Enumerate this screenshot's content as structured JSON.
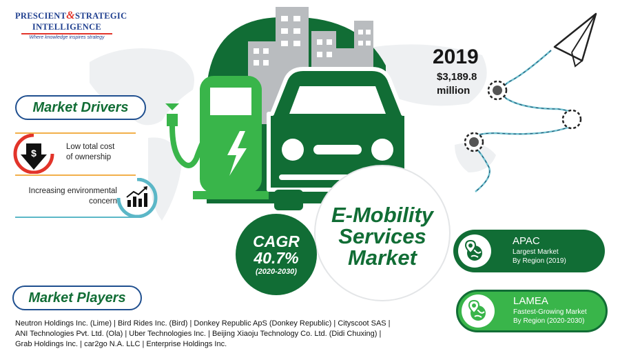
{
  "logo": {
    "line1_a": "PRESCIENT",
    "line1_amp": "&",
    "line1_b": "STRATEGIC",
    "line2": "INTELLIGENCE",
    "tagline": "Where knowledge inspires strategy"
  },
  "title": {
    "line1": "E-Mobility",
    "line2": "Services",
    "line3": "Market"
  },
  "market_size": {
    "year": "2019",
    "value": "$3,189.8",
    "unit": "million"
  },
  "cagr": {
    "label": "CAGR",
    "value": "40.7%",
    "period": "(2020-2030)"
  },
  "drivers": {
    "heading": "Market Drivers",
    "items": [
      {
        "line1": "Low total cost",
        "line2": "of ownership",
        "icon": "dollar-down-arrow-icon"
      },
      {
        "line1": "Increasing environmental",
        "line2": "concern",
        "icon": "growth-chart-icon"
      }
    ]
  },
  "regions": [
    {
      "name": "APAC",
      "line1": "Largest Market",
      "line2": "By Region (2019)",
      "color": "#116d35"
    },
    {
      "name": "LAMEA",
      "line1": "Fastest-Growing Market",
      "line2": "By Region (2020-2030)",
      "color": "#39b54a"
    }
  ],
  "players": {
    "heading": "Market Players",
    "line1": "Neutron Holdings Inc. (Lime) | Bird Rides Inc. (Bird) | Donkey Republic ApS (Donkey Republic) | Cityscoot SAS |",
    "line2": "ANI Technologies Pvt. Ltd. (Ola) | Uber Technologies Inc. | Beijing Xiaoju Technology Co. Ltd. (Didi Chuxing) |",
    "line3": "Grab Holdings Inc. | car2go N.A. LLC | Enterprise Holdings Inc."
  },
  "colors": {
    "dark_green": "#116d35",
    "light_green": "#39b54a",
    "navy": "#1f4f8f",
    "orange": "#f2b04a",
    "teal": "#5bb7c7",
    "red": "#e2342a"
  },
  "icons": [
    "paper-plane-icon",
    "ev-charger-icon",
    "car-icon",
    "city-buildings-icon",
    "location-globe-icon",
    "world-map-background"
  ]
}
